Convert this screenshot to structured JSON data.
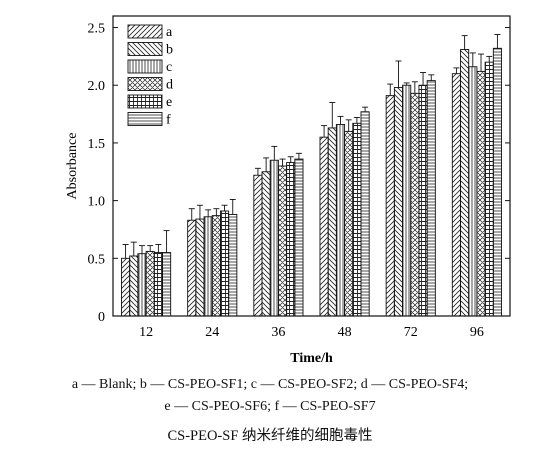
{
  "chart_data": {
    "type": "bar",
    "xlabel": "Time/h",
    "ylabel": "Absorbance",
    "categories": [
      "12",
      "24",
      "36",
      "48",
      "72",
      "96"
    ],
    "ylim": [
      0,
      2.6
    ],
    "yticks": [
      "0",
      "0.5",
      "1.0",
      "1.5",
      "2.0",
      "2.5"
    ],
    "legend_position": "top-left",
    "series": [
      {
        "name": "a",
        "values": [
          0.5,
          0.83,
          1.22,
          1.55,
          1.91,
          2.1
        ],
        "errors": [
          0.12,
          0.1,
          0.06,
          0.1,
          0.1,
          0.05
        ]
      },
      {
        "name": "b",
        "values": [
          0.52,
          0.84,
          1.25,
          1.63,
          1.98,
          2.31
        ],
        "errors": [
          0.12,
          0.12,
          0.12,
          0.22,
          0.23,
          0.12
        ]
      },
      {
        "name": "c",
        "values": [
          0.54,
          0.86,
          1.35,
          1.66,
          2.0,
          2.16
        ],
        "errors": [
          0.07,
          0.06,
          0.12,
          0.07,
          0.02,
          0.12
        ]
      },
      {
        "name": "d",
        "values": [
          0.56,
          0.87,
          1.3,
          1.6,
          1.93,
          2.12
        ],
        "errors": [
          0.05,
          0.06,
          0.06,
          0.1,
          0.1,
          0.15
        ]
      },
      {
        "name": "e",
        "values": [
          0.55,
          0.91,
          1.33,
          1.67,
          2.0,
          2.2
        ],
        "errors": [
          0.07,
          0.05,
          0.05,
          0.05,
          0.11,
          0.05
        ]
      },
      {
        "name": "f",
        "values": [
          0.55,
          0.88,
          1.36,
          1.77,
          2.04,
          2.32
        ],
        "errors": [
          0.19,
          0.13,
          0.05,
          0.04,
          0.05,
          0.12
        ]
      }
    ]
  },
  "caption": {
    "line1": "a — Blank; b — CS-PEO-SF1; c — CS-PEO-SF2; d — CS-PEO-SF4;",
    "line2": "e — CS-PEO-SF6; f — CS-PEO-SF7",
    "title": "CS-PEO-SF 纳米纤维的细胞毒性"
  }
}
